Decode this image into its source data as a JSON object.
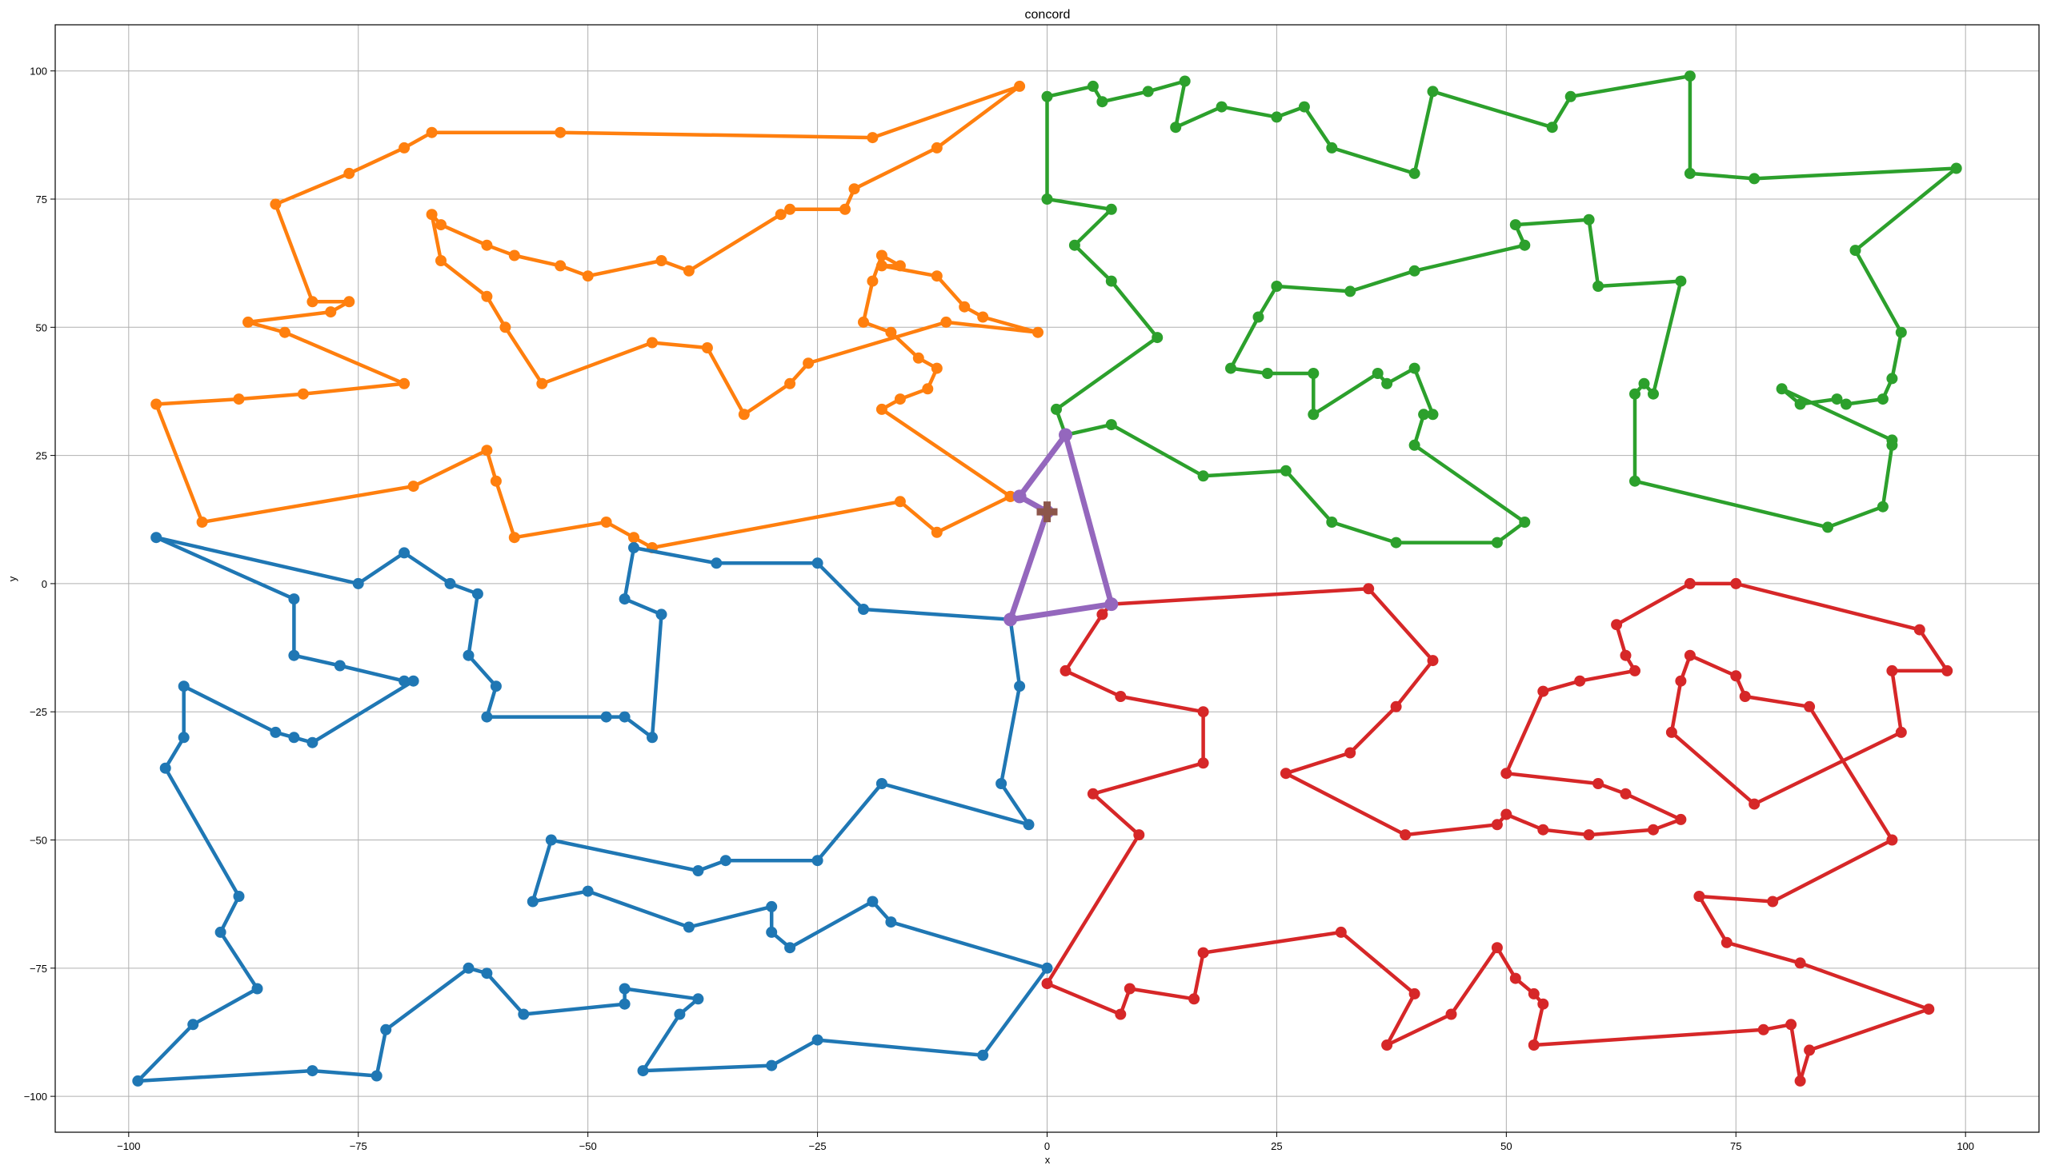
{
  "chart_data": {
    "type": "line",
    "title": "concord",
    "xlabel": "x",
    "ylabel": "y",
    "xlim": [
      -108,
      108
    ],
    "ylim": [
      -107,
      109
    ],
    "xticks": [
      -100,
      -75,
      -50,
      -25,
      0,
      25,
      50,
      75,
      100
    ],
    "yticks": [
      -100,
      -75,
      -50,
      -25,
      0,
      25,
      50,
      75,
      100
    ],
    "xtick_labels": [
      "−100",
      "−75",
      "−50",
      "−25",
      "0",
      "25",
      "50",
      "75",
      "100"
    ],
    "ytick_labels": [
      "−100",
      "−75",
      "−50",
      "−25",
      "0",
      "25",
      "50",
      "75",
      "100"
    ],
    "grid": true,
    "depot": {
      "x": 0,
      "y": 14,
      "color": "#8c564b",
      "marker": "plus"
    },
    "series": [
      {
        "color": "#ff7f0e",
        "points": [
          [
            -4,
            17
          ],
          [
            -12,
            10
          ],
          [
            -16,
            16
          ],
          [
            -43,
            7
          ],
          [
            -45,
            9
          ],
          [
            -48,
            12
          ],
          [
            -58,
            9
          ],
          [
            -60,
            20
          ],
          [
            -61,
            26
          ],
          [
            -69,
            19
          ],
          [
            -92,
            12
          ],
          [
            -97,
            35
          ],
          [
            -88,
            36
          ],
          [
            -81,
            37
          ],
          [
            -70,
            39
          ],
          [
            -83,
            49
          ],
          [
            -87,
            51
          ],
          [
            -78,
            53
          ],
          [
            -76,
            55
          ],
          [
            -80,
            55
          ],
          [
            -84,
            74
          ],
          [
            -76,
            80
          ],
          [
            -70,
            85
          ],
          [
            -67,
            88
          ],
          [
            -53,
            88
          ],
          [
            -19,
            87
          ],
          [
            -3,
            97
          ],
          [
            -12,
            85
          ],
          [
            -21,
            77
          ],
          [
            -22,
            73
          ],
          [
            -28,
            73
          ],
          [
            -29,
            72
          ],
          [
            -39,
            61
          ],
          [
            -42,
            63
          ],
          [
            -50,
            60
          ],
          [
            -53,
            62
          ],
          [
            -58,
            64
          ],
          [
            -61,
            66
          ],
          [
            -66,
            70
          ],
          [
            -67,
            72
          ],
          [
            -66,
            63
          ],
          [
            -61,
            56
          ],
          [
            -59,
            50
          ],
          [
            -55,
            39
          ],
          [
            -43,
            47
          ],
          [
            -37,
            46
          ],
          [
            -33,
            33
          ],
          [
            -28,
            39
          ],
          [
            -26,
            43
          ],
          [
            -11,
            51
          ],
          [
            -1,
            49
          ],
          [
            -7,
            52
          ],
          [
            -9,
            54
          ],
          [
            -12,
            60
          ],
          [
            -18,
            62
          ],
          [
            -16,
            62
          ],
          [
            -18,
            64
          ],
          [
            -19,
            59
          ],
          [
            -20,
            51
          ],
          [
            -17,
            49
          ],
          [
            -14,
            44
          ],
          [
            -12,
            42
          ],
          [
            -13,
            38
          ],
          [
            -16,
            36
          ],
          [
            -18,
            34
          ],
          [
            -4,
            17
          ]
        ]
      },
      {
        "color": "#1f77b4",
        "points": [
          [
            -4,
            -7
          ],
          [
            -20,
            -5
          ],
          [
            -25,
            4
          ],
          [
            -36,
            4
          ],
          [
            -45,
            7
          ],
          [
            -46,
            -3
          ],
          [
            -42,
            -6
          ],
          [
            -43,
            -30
          ],
          [
            -46,
            -26
          ],
          [
            -48,
            -26
          ],
          [
            -61,
            -26
          ],
          [
            -60,
            -20
          ],
          [
            -63,
            -14
          ],
          [
            -62,
            -2
          ],
          [
            -65,
            0
          ],
          [
            -70,
            6
          ],
          [
            -75,
            0
          ],
          [
            -97,
            9
          ],
          [
            -82,
            -3
          ],
          [
            -82,
            -14
          ],
          [
            -77,
            -16
          ],
          [
            -70,
            -19
          ],
          [
            -69,
            -19
          ],
          [
            -80,
            -31
          ],
          [
            -82,
            -30
          ],
          [
            -84,
            -29
          ],
          [
            -94,
            -20
          ],
          [
            -94,
            -30
          ],
          [
            -96,
            -36
          ],
          [
            -88,
            -61
          ],
          [
            -90,
            -68
          ],
          [
            -86,
            -79
          ],
          [
            -93,
            -86
          ],
          [
            -99,
            -97
          ],
          [
            -80,
            -95
          ],
          [
            -73,
            -96
          ],
          [
            -72,
            -87
          ],
          [
            -63,
            -75
          ],
          [
            -61,
            -76
          ],
          [
            -57,
            -84
          ],
          [
            -46,
            -82
          ],
          [
            -46,
            -79
          ],
          [
            -38,
            -81
          ],
          [
            -40,
            -84
          ],
          [
            -44,
            -95
          ],
          [
            -30,
            -94
          ],
          [
            -25,
            -89
          ],
          [
            -7,
            -92
          ],
          [
            0,
            -75
          ],
          [
            -17,
            -66
          ],
          [
            -19,
            -62
          ],
          [
            -28,
            -71
          ],
          [
            -30,
            -68
          ],
          [
            -30,
            -63
          ],
          [
            -39,
            -67
          ],
          [
            -50,
            -60
          ],
          [
            -56,
            -62
          ],
          [
            -54,
            -50
          ],
          [
            -38,
            -56
          ],
          [
            -35,
            -54
          ],
          [
            -25,
            -54
          ],
          [
            -18,
            -39
          ],
          [
            -2,
            -47
          ],
          [
            -5,
            -39
          ],
          [
            -3,
            -20
          ],
          [
            -4,
            -7
          ]
        ]
      },
      {
        "color": "#2ca02c",
        "points": [
          [
            2,
            29
          ],
          [
            7,
            31
          ],
          [
            17,
            21
          ],
          [
            26,
            22
          ],
          [
            31,
            12
          ],
          [
            38,
            8
          ],
          [
            49,
            8
          ],
          [
            52,
            12
          ],
          [
            40,
            27
          ],
          [
            41,
            33
          ],
          [
            42,
            33
          ],
          [
            40,
            42
          ],
          [
            37,
            39
          ],
          [
            36,
            41
          ],
          [
            29,
            33
          ],
          [
            29,
            41
          ],
          [
            24,
            41
          ],
          [
            20,
            42
          ],
          [
            23,
            52
          ],
          [
            25,
            58
          ],
          [
            33,
            57
          ],
          [
            40,
            61
          ],
          [
            52,
            66
          ],
          [
            51,
            70
          ],
          [
            59,
            71
          ],
          [
            60,
            58
          ],
          [
            69,
            59
          ],
          [
            66,
            37
          ],
          [
            65,
            39
          ],
          [
            64,
            37
          ],
          [
            64,
            20
          ],
          [
            85,
            11
          ],
          [
            91,
            15
          ],
          [
            92,
            27
          ],
          [
            92,
            28
          ],
          [
            80,
            38
          ],
          [
            82,
            35
          ],
          [
            86,
            36
          ],
          [
            87,
            35
          ],
          [
            91,
            36
          ],
          [
            92,
            40
          ],
          [
            93,
            49
          ],
          [
            88,
            65
          ],
          [
            99,
            81
          ],
          [
            77,
            79
          ],
          [
            70,
            80
          ],
          [
            70,
            99
          ],
          [
            57,
            95
          ],
          [
            55,
            89
          ],
          [
            42,
            96
          ],
          [
            40,
            80
          ],
          [
            31,
            85
          ],
          [
            28,
            93
          ],
          [
            25,
            91
          ],
          [
            19,
            93
          ],
          [
            14,
            89
          ],
          [
            15,
            98
          ],
          [
            11,
            96
          ],
          [
            6,
            94
          ],
          [
            5,
            97
          ],
          [
            0,
            95
          ],
          [
            0,
            75
          ],
          [
            7,
            73
          ],
          [
            3,
            66
          ],
          [
            7,
            59
          ],
          [
            12,
            48
          ],
          [
            1,
            34
          ],
          [
            2,
            29
          ]
        ]
      },
      {
        "color": "#d62728",
        "points": [
          [
            7,
            -4
          ],
          [
            35,
            -1
          ],
          [
            42,
            -15
          ],
          [
            38,
            -24
          ],
          [
            33,
            -33
          ],
          [
            26,
            -37
          ],
          [
            39,
            -49
          ],
          [
            49,
            -47
          ],
          [
            50,
            -45
          ],
          [
            54,
            -48
          ],
          [
            59,
            -49
          ],
          [
            66,
            -48
          ],
          [
            69,
            -46
          ],
          [
            63,
            -41
          ],
          [
            60,
            -39
          ],
          [
            50,
            -37
          ],
          [
            54,
            -21
          ],
          [
            58,
            -19
          ],
          [
            64,
            -17
          ],
          [
            63,
            -14
          ],
          [
            62,
            -8
          ],
          [
            70,
            0
          ],
          [
            75,
            0
          ],
          [
            95,
            -9
          ],
          [
            98,
            -17
          ],
          [
            92,
            -17
          ],
          [
            93,
            -29
          ],
          [
            77,
            -43
          ],
          [
            68,
            -29
          ],
          [
            69,
            -19
          ],
          [
            70,
            -14
          ],
          [
            75,
            -18
          ],
          [
            76,
            -22
          ],
          [
            83,
            -24
          ],
          [
            92,
            -50
          ],
          [
            79,
            -62
          ],
          [
            71,
            -61
          ],
          [
            74,
            -70
          ],
          [
            82,
            -74
          ],
          [
            96,
            -83
          ],
          [
            83,
            -91
          ],
          [
            82,
            -97
          ],
          [
            81,
            -86
          ],
          [
            78,
            -87
          ],
          [
            53,
            -90
          ],
          [
            54,
            -82
          ],
          [
            53,
            -80
          ],
          [
            51,
            -77
          ],
          [
            49,
            -71
          ],
          [
            44,
            -84
          ],
          [
            37,
            -90
          ],
          [
            40,
            -80
          ],
          [
            32,
            -68
          ],
          [
            17,
            -72
          ],
          [
            16,
            -81
          ],
          [
            9,
            -79
          ],
          [
            8,
            -84
          ],
          [
            0,
            -78
          ],
          [
            10,
            -49
          ],
          [
            5,
            -41
          ],
          [
            17,
            -35
          ],
          [
            17,
            -25
          ],
          [
            8,
            -22
          ],
          [
            2,
            -17
          ],
          [
            6,
            -6
          ],
          [
            7,
            -4
          ]
        ]
      },
      {
        "color": "#9467bd",
        "points": [
          [
            0,
            14
          ],
          [
            -3,
            17
          ],
          [
            2,
            29
          ],
          [
            7,
            -4
          ],
          [
            -4,
            -7
          ],
          [
            0,
            14
          ]
        ]
      }
    ]
  }
}
